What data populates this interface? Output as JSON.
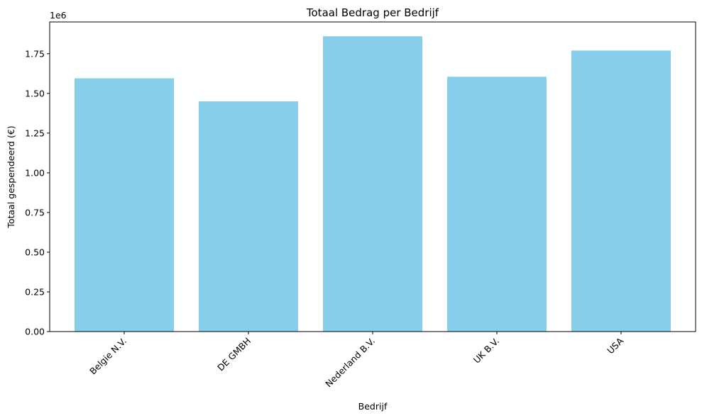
{
  "chart_data": {
    "type": "bar",
    "title": "Totaal Bedrag per Bedrijf",
    "xlabel": "Bedrijf",
    "ylabel": "Totaal gespendeerd (€)",
    "offset_label": "1e6",
    "categories": [
      "Belgie N.V.",
      "DE GMBH",
      "Nederland B.V.",
      "UK B.V.",
      "USA"
    ],
    "values": [
      1595000,
      1450000,
      1860000,
      1605000,
      1770000
    ],
    "ylim": [
      0,
      1950000
    ],
    "yticks": [
      0,
      250000,
      500000,
      750000,
      1000000,
      1250000,
      1500000,
      1750000
    ],
    "ytick_labels": [
      "0.00",
      "0.25",
      "0.50",
      "0.75",
      "1.00",
      "1.25",
      "1.50",
      "1.75"
    ],
    "bar_color": "#87ceeb",
    "grid": false,
    "legend": null
  }
}
